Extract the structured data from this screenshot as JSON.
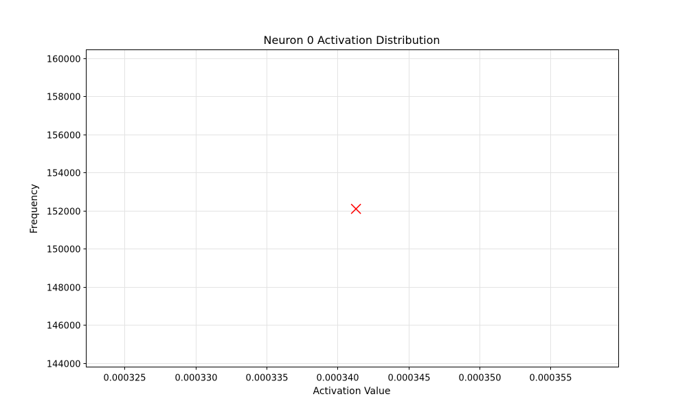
{
  "chart_data": {
    "type": "scatter",
    "title": "Neuron 0 Activation Distribution",
    "xlabel": "Activation Value",
    "ylabel": "Frequency",
    "xlim": [
      0.0003223,
      0.0003598
    ],
    "ylim": [
      143800,
      160450
    ],
    "grid": true,
    "x_ticks": [
      0.000325,
      0.00033,
      0.000335,
      0.00034,
      0.000345,
      0.00035,
      0.000355
    ],
    "x_tick_labels": [
      "0.000325",
      "0.000330",
      "0.000335",
      "0.000340",
      "0.000345",
      "0.000350",
      "0.000355"
    ],
    "y_ticks": [
      144000,
      146000,
      148000,
      150000,
      152000,
      154000,
      156000,
      158000,
      160000
    ],
    "y_tick_labels": [
      "144000",
      "146000",
      "148000",
      "150000",
      "152000",
      "154000",
      "156000",
      "158000",
      "160000"
    ],
    "series": [
      {
        "marker": "x",
        "color": "#ff0000",
        "points": [
          {
            "x": 0.0003413,
            "y": 152100
          }
        ]
      }
    ]
  }
}
